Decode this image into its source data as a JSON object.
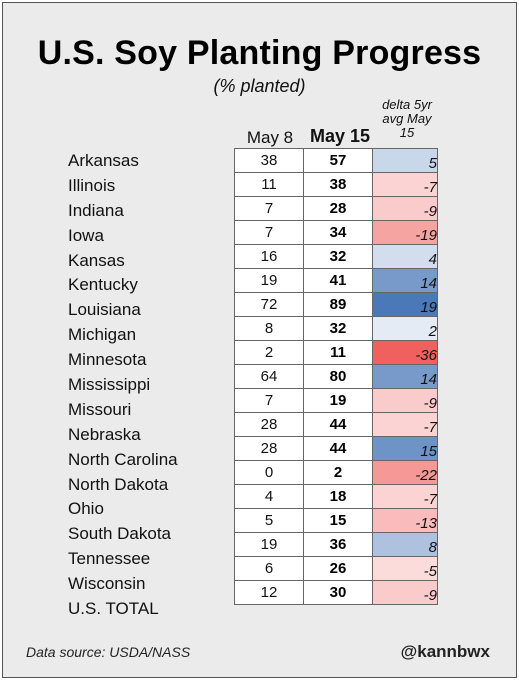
{
  "chart_data": {
    "type": "table",
    "title": "U.S. Soy Planting Progress",
    "subtitle": "(% planted)",
    "columns": [
      "May 8",
      "May 15",
      "delta 5yr avg May 15"
    ],
    "rows": [
      {
        "name": "Arkansas",
        "may8": "38",
        "may15": "57",
        "delta": "5"
      },
      {
        "name": "Illinois",
        "may8": "11",
        "may15": "38",
        "delta": "-7"
      },
      {
        "name": "Indiana",
        "may8": "7",
        "may15": "28",
        "delta": "-9"
      },
      {
        "name": "Iowa",
        "may8": "7",
        "may15": "34",
        "delta": "-19"
      },
      {
        "name": "Kansas",
        "may8": "16",
        "may15": "32",
        "delta": "4"
      },
      {
        "name": "Kentucky",
        "may8": "19",
        "may15": "41",
        "delta": "14"
      },
      {
        "name": "Louisiana",
        "may8": "72",
        "may15": "89",
        "delta": "19"
      },
      {
        "name": "Michigan",
        "may8": "8",
        "may15": "32",
        "delta": "2"
      },
      {
        "name": "Minnesota",
        "may8": "2",
        "may15": "11",
        "delta": "-36"
      },
      {
        "name": "Mississippi",
        "may8": "64",
        "may15": "80",
        "delta": "14"
      },
      {
        "name": "Missouri",
        "may8": "7",
        "may15": "19",
        "delta": "-9"
      },
      {
        "name": "Nebraska",
        "may8": "28",
        "may15": "44",
        "delta": "-7"
      },
      {
        "name": "North Carolina",
        "may8": "28",
        "may15": "44",
        "delta": "15"
      },
      {
        "name": "North Dakota",
        "may8": "0",
        "may15": "2",
        "delta": "-22"
      },
      {
        "name": "Ohio",
        "may8": "4",
        "may15": "18",
        "delta": "-7"
      },
      {
        "name": "South Dakota",
        "may8": "5",
        "may15": "15",
        "delta": "-13"
      },
      {
        "name": "Tennessee",
        "may8": "19",
        "may15": "36",
        "delta": "8"
      },
      {
        "name": "Wisconsin",
        "may8": "6",
        "may15": "26",
        "delta": "-5"
      },
      {
        "name": "U.S. TOTAL",
        "may8": "12",
        "may15": "30",
        "delta": "-9"
      }
    ],
    "delta_color_scale": {
      "positive": "#4a78b8",
      "negative": "#f0605e",
      "neutral": "#ffffff"
    }
  },
  "header": {
    "col_may8": "May 8",
    "col_may15": "May 15",
    "col_delta_line1": "delta 5yr",
    "col_delta_line2": "avg May",
    "col_delta_line3": "15"
  },
  "footer": {
    "source": "Data source: USDA/NASS",
    "handle": "@kannbwx"
  }
}
